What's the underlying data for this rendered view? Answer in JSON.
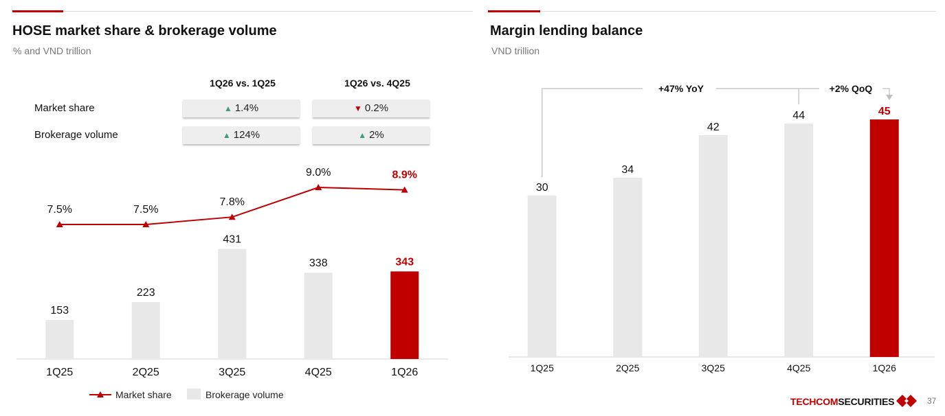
{
  "colors": {
    "accent": "#c00000",
    "bar": "#e8e8e8",
    "up": "#3e9d7a",
    "down": "#c00000",
    "line_gray": "#bfbfbf"
  },
  "left": {
    "title": "HOSE market share & brokerage volume",
    "subtitle": "% and VND trillion",
    "table": {
      "headers": [
        "1Q26 vs. 1Q25",
        "1Q26 vs. 4Q25"
      ],
      "rows": [
        {
          "label": "Market share",
          "c1": {
            "dir": "up",
            "glyph": "▲",
            "value": "1.4%"
          },
          "c2": {
            "dir": "down",
            "glyph": "▼",
            "value": "0.2%"
          }
        },
        {
          "label": "Brokerage volume",
          "c1": {
            "dir": "up",
            "glyph": "▲",
            "value": "124%"
          },
          "c2": {
            "dir": "up",
            "glyph": "▲",
            "value": "2%"
          }
        }
      ]
    }
  },
  "right": {
    "title": "Margin lending balance",
    "subtitle": "VND trillion"
  },
  "chart_data": [
    {
      "type": "bar",
      "title": "HOSE market share & brokerage volume",
      "categories": [
        "1Q25",
        "2Q25",
        "3Q25",
        "4Q25",
        "1Q26"
      ],
      "series": [
        {
          "name": "Brokerage volume",
          "type": "bar",
          "values": [
            153,
            223,
            431,
            338,
            343
          ],
          "labels": [
            "153",
            "223",
            "431",
            "338",
            "343"
          ]
        },
        {
          "name": "Market share",
          "type": "line",
          "values": [
            7.5,
            7.5,
            7.8,
            9.0,
            8.9
          ],
          "labels": [
            "7.5%",
            "7.5%",
            "7.8%",
            "9.0%",
            "8.9%"
          ]
        }
      ],
      "legend": [
        "Market share",
        "Brokerage volume"
      ],
      "highlight_index": 4,
      "ylim_bar": [
        0,
        430
      ],
      "ylim_line": [
        3.0,
        12.0
      ]
    },
    {
      "type": "bar",
      "title": "Margin lending balance",
      "categories": [
        "1Q25",
        "2Q25",
        "3Q25",
        "4Q25",
        "1Q26"
      ],
      "values": [
        30,
        34,
        42,
        44,
        45
      ],
      "labels": [
        "30",
        "34",
        "42",
        "44",
        "45"
      ],
      "highlight_index": 4,
      "ylim": [
        0,
        49.5
      ],
      "annotations": [
        {
          "text": "+47% YoY",
          "from": "1Q25",
          "to": "1Q26"
        },
        {
          "text": "+2% QoQ",
          "from": "4Q25",
          "to": "1Q26"
        }
      ]
    }
  ],
  "footer": {
    "brand_red": "TECHCOM",
    "brand_dark": "SECURITIES",
    "page": "37"
  }
}
